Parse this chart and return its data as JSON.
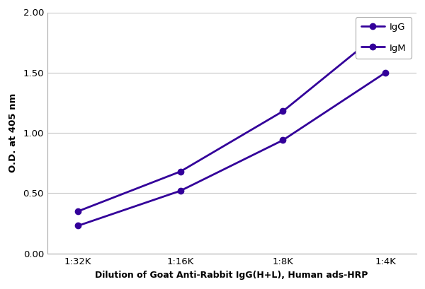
{
  "x_labels": [
    "1:32K",
    "1:16K",
    "1:8K",
    "1:4K"
  ],
  "x_positions": [
    0,
    1,
    2,
    3
  ],
  "IgG_values": [
    0.35,
    0.68,
    1.18,
    1.87
  ],
  "IgM_values": [
    0.23,
    0.52,
    0.94,
    1.5
  ],
  "line_color": "#33009a",
  "ylim": [
    0.0,
    2.0
  ],
  "yticks": [
    0.0,
    0.5,
    1.0,
    1.5,
    2.0
  ],
  "ylabel": "O.D. at 405 nm",
  "xlabel": "Dilution of Goat Anti-Rabbit IgG(H+L), Human ads-HRP",
  "legend_IgG": "IgG",
  "legend_IgM": "IgM",
  "background_color": "#ffffff",
  "grid_color": "#c8c8c8",
  "axis_fontsize": 9.5,
  "tick_fontsize": 9.5,
  "legend_fontsize": 9.5,
  "xlabel_fontsize": 9.0
}
